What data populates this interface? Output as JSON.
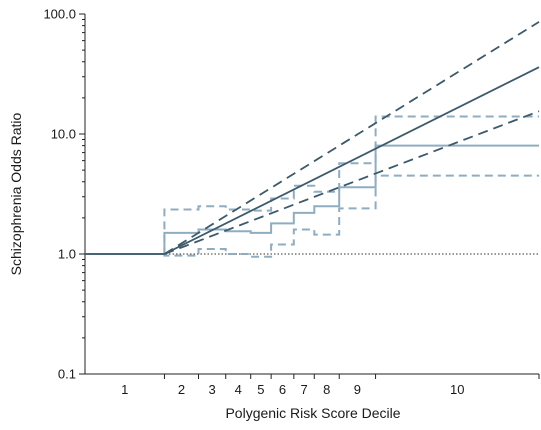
{
  "chart_data": {
    "type": "line",
    "title": "",
    "xlabel": "Polygenic Risk Score Decile",
    "ylabel": "Schizophrenia Odds Ratio",
    "y_scale": "log",
    "ylim": [
      0.1,
      100
    ],
    "y_ticks": [
      {
        "value": 0.1,
        "label": "0.1"
      },
      {
        "value": 1,
        "label": "1.0"
      },
      {
        "value": 10,
        "label": "10.0"
      },
      {
        "value": 100,
        "label": "100.0"
      }
    ],
    "x_scale": "cumulative percentile",
    "xlim": [
      0,
      100
    ],
    "decile_boundaries": [
      0,
      17.5,
      25,
      31,
      36.5,
      41,
      46,
      50.5,
      56,
      64,
      100
    ],
    "decile_labels": [
      "1",
      "2",
      "3",
      "4",
      "5",
      "6",
      "7",
      "8",
      "9",
      "10"
    ],
    "reference_line": {
      "value": 1,
      "style": "dotted"
    },
    "series": [
      {
        "style": "step",
        "role": "estimate",
        "color": "#8fadc0",
        "values": [
          1.0,
          1.5,
          1.6,
          1.55,
          1.5,
          1.8,
          2.2,
          2.5,
          3.6,
          8.0
        ]
      },
      {
        "style": "step-dashed",
        "role": "upper CI",
        "color": "#8fadc0",
        "values": [
          1.0,
          2.35,
          2.5,
          2.35,
          2.3,
          2.9,
          3.7,
          3.3,
          5.7,
          14.0
        ]
      },
      {
        "style": "step-dashed",
        "role": "lower CI",
        "color": "#8fadc0",
        "values": [
          1.0,
          0.97,
          1.1,
          1.0,
          0.95,
          1.2,
          1.6,
          1.45,
          2.4,
          4.5
        ]
      },
      {
        "style": "line",
        "role": "fitted trend",
        "color": "#3c5a6b",
        "x": [
          0,
          17.5,
          100
        ],
        "values": [
          1.0,
          1.0,
          36
        ]
      },
      {
        "style": "dashed",
        "role": "fitted upper",
        "color": "#3c5a6b",
        "x": [
          17.5,
          100
        ],
        "values": [
          1.0,
          86
        ]
      },
      {
        "style": "dashed",
        "role": "fitted lower",
        "color": "#3c5a6b",
        "x": [
          17.5,
          100
        ],
        "values": [
          1.0,
          15.5
        ]
      }
    ]
  }
}
